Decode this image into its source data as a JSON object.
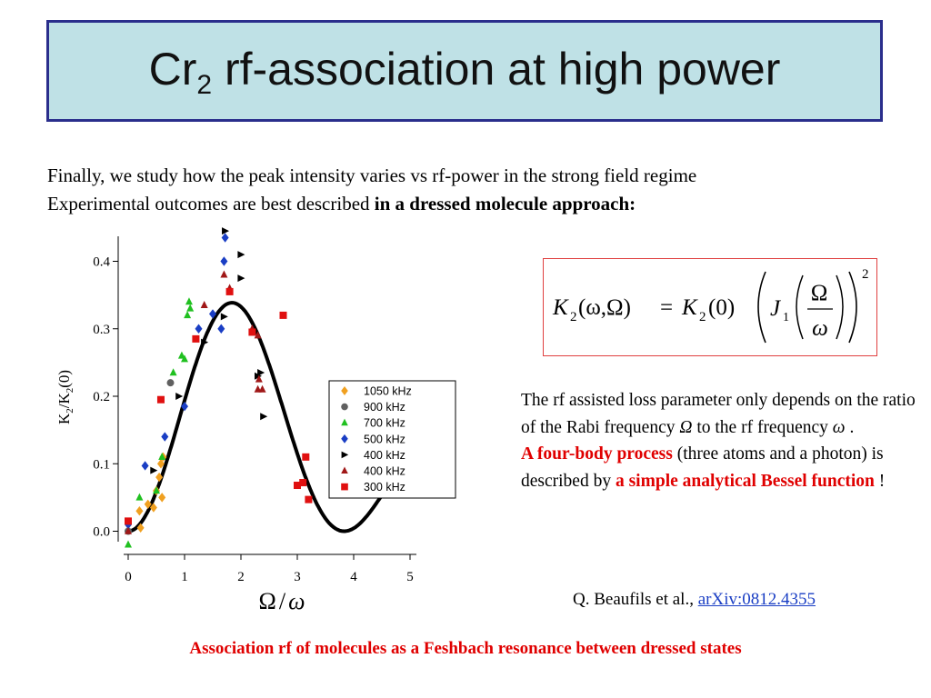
{
  "slide": {
    "title_main": "Cr",
    "title_sub": "2",
    "title_rest": " rf-association at high power",
    "intro_line1": "Finally, we study how the peak intensity varies vs rf-power in the strong field regime",
    "intro_line2_plain": "Experimental outcomes are best described ",
    "intro_line2_bold": "in a dressed molecule approach:",
    "desc_1": "The rf assisted loss parameter only depends on the ratio of the Rabi frequency ",
    "desc_omega_big": "Ω",
    "desc_2": " to the rf frequency ",
    "desc_omega_small": "ω",
    "desc_3": " .",
    "desc_red_1": "A four-body process",
    "desc_4": " (three atoms and a photon) is described by ",
    "desc_red_2": "a simple analytical Bessel function",
    "desc_5": " !",
    "citation_text": "Q. Beaufils et al., ",
    "citation_link": "arXiv:0812.4355",
    "footer": "Association rf of molecules as a Feshbach resonance between dressed states"
  },
  "formula": {
    "lhs_K": "K",
    "lhs_sub": "2",
    "lhs_args": "(ω,Ω)",
    "eq": "=",
    "rhs_K": "K",
    "rhs_sub": "2",
    "rhs_args": "(0)",
    "J": "J",
    "J_sub": "1",
    "frac_num": "Ω",
    "frac_den": "ω",
    "exponent": "2"
  },
  "chart_data": {
    "type": "scatter",
    "ylabel": "K2/K2(0)",
    "ylabel_main": "K",
    "ylabel_sub1": "2",
    "ylabel_mid": "/K",
    "ylabel_sub2": "2",
    "ylabel_end": "(0)",
    "xlabel": "Ω / ω",
    "xlabel_num": "Ω",
    "xlabel_slash": "/",
    "xlabel_den": "ω",
    "xlim": [
      0,
      5
    ],
    "ylim": [
      -0.03,
      0.45
    ],
    "xticks": [
      0,
      1,
      2,
      3,
      4,
      5
    ],
    "yticks": [
      0.0,
      0.1,
      0.2,
      0.3,
      0.4
    ],
    "ytick_labels": [
      "0.0",
      "0.1",
      "0.2",
      "0.3",
      "0.4"
    ],
    "legend_position": "center-right",
    "curve": {
      "name": "",
      "function": "J1(x)^2",
      "color": "#000000"
    },
    "series": [
      {
        "name": "1050 kHz",
        "marker": "diamond",
        "color": "#f0a020",
        "points": [
          [
            0.0,
            0.01
          ],
          [
            0.2,
            0.03
          ],
          [
            0.22,
            0.005
          ],
          [
            0.35,
            0.04
          ],
          [
            0.45,
            0.035
          ],
          [
            0.5,
            0.06
          ],
          [
            0.55,
            0.08
          ],
          [
            0.58,
            0.1
          ],
          [
            0.6,
            0.05
          ],
          [
            0.62,
            0.11
          ]
        ]
      },
      {
        "name": "900 kHz",
        "marker": "circle",
        "color": "#606060",
        "points": [
          [
            0.0,
            0.0
          ],
          [
            0.75,
            0.22
          ]
        ]
      },
      {
        "name": "700 kHz",
        "marker": "triangle-up",
        "color": "#20c020",
        "points": [
          [
            0.0,
            -0.02
          ],
          [
            0.2,
            0.05
          ],
          [
            0.5,
            0.06
          ],
          [
            0.6,
            0.11
          ],
          [
            0.8,
            0.235
          ],
          [
            0.95,
            0.26
          ],
          [
            1.0,
            0.255
          ],
          [
            1.05,
            0.32
          ],
          [
            1.08,
            0.34
          ],
          [
            1.1,
            0.33
          ]
        ]
      },
      {
        "name": "500 kHz",
        "marker": "diamond",
        "color": "#1a3ec4",
        "points": [
          [
            0.0,
            0.01
          ],
          [
            0.3,
            0.097
          ],
          [
            0.65,
            0.14
          ],
          [
            1.0,
            0.185
          ],
          [
            1.25,
            0.3
          ],
          [
            1.5,
            0.322
          ],
          [
            1.65,
            0.3
          ],
          [
            1.7,
            0.4
          ],
          [
            1.72,
            0.435
          ]
        ]
      },
      {
        "name": "400 kHz",
        "marker": "triangle-right",
        "color": "#000000",
        "points": [
          [
            0.45,
            0.09
          ],
          [
            0.9,
            0.2
          ],
          [
            1.35,
            0.28
          ],
          [
            1.7,
            0.318
          ],
          [
            1.72,
            0.445
          ],
          [
            2.0,
            0.41
          ],
          [
            2.0,
            0.375
          ],
          [
            2.3,
            0.23
          ],
          [
            2.35,
            0.235
          ],
          [
            2.4,
            0.17
          ]
        ]
      },
      {
        "name": "400 kHz",
        "marker": "triangle-up",
        "color": "#a01818",
        "points": [
          [
            0.0,
            0.0
          ],
          [
            1.35,
            0.335
          ],
          [
            1.7,
            0.38
          ],
          [
            1.8,
            0.36
          ],
          [
            2.2,
            0.3
          ],
          [
            2.3,
            0.29
          ],
          [
            2.32,
            0.225
          ],
          [
            2.3,
            0.21
          ],
          [
            2.38,
            0.21
          ]
        ]
      },
      {
        "name": "300 kHz",
        "marker": "square",
        "color": "#e01010",
        "points": [
          [
            0.0,
            0.015
          ],
          [
            0.58,
            0.195
          ],
          [
            1.2,
            0.285
          ],
          [
            1.8,
            0.355
          ],
          [
            2.2,
            0.295
          ],
          [
            2.75,
            0.32
          ],
          [
            3.0,
            0.068
          ],
          [
            3.1,
            0.072
          ],
          [
            3.15,
            0.11
          ],
          [
            3.2,
            0.047
          ]
        ]
      }
    ]
  }
}
